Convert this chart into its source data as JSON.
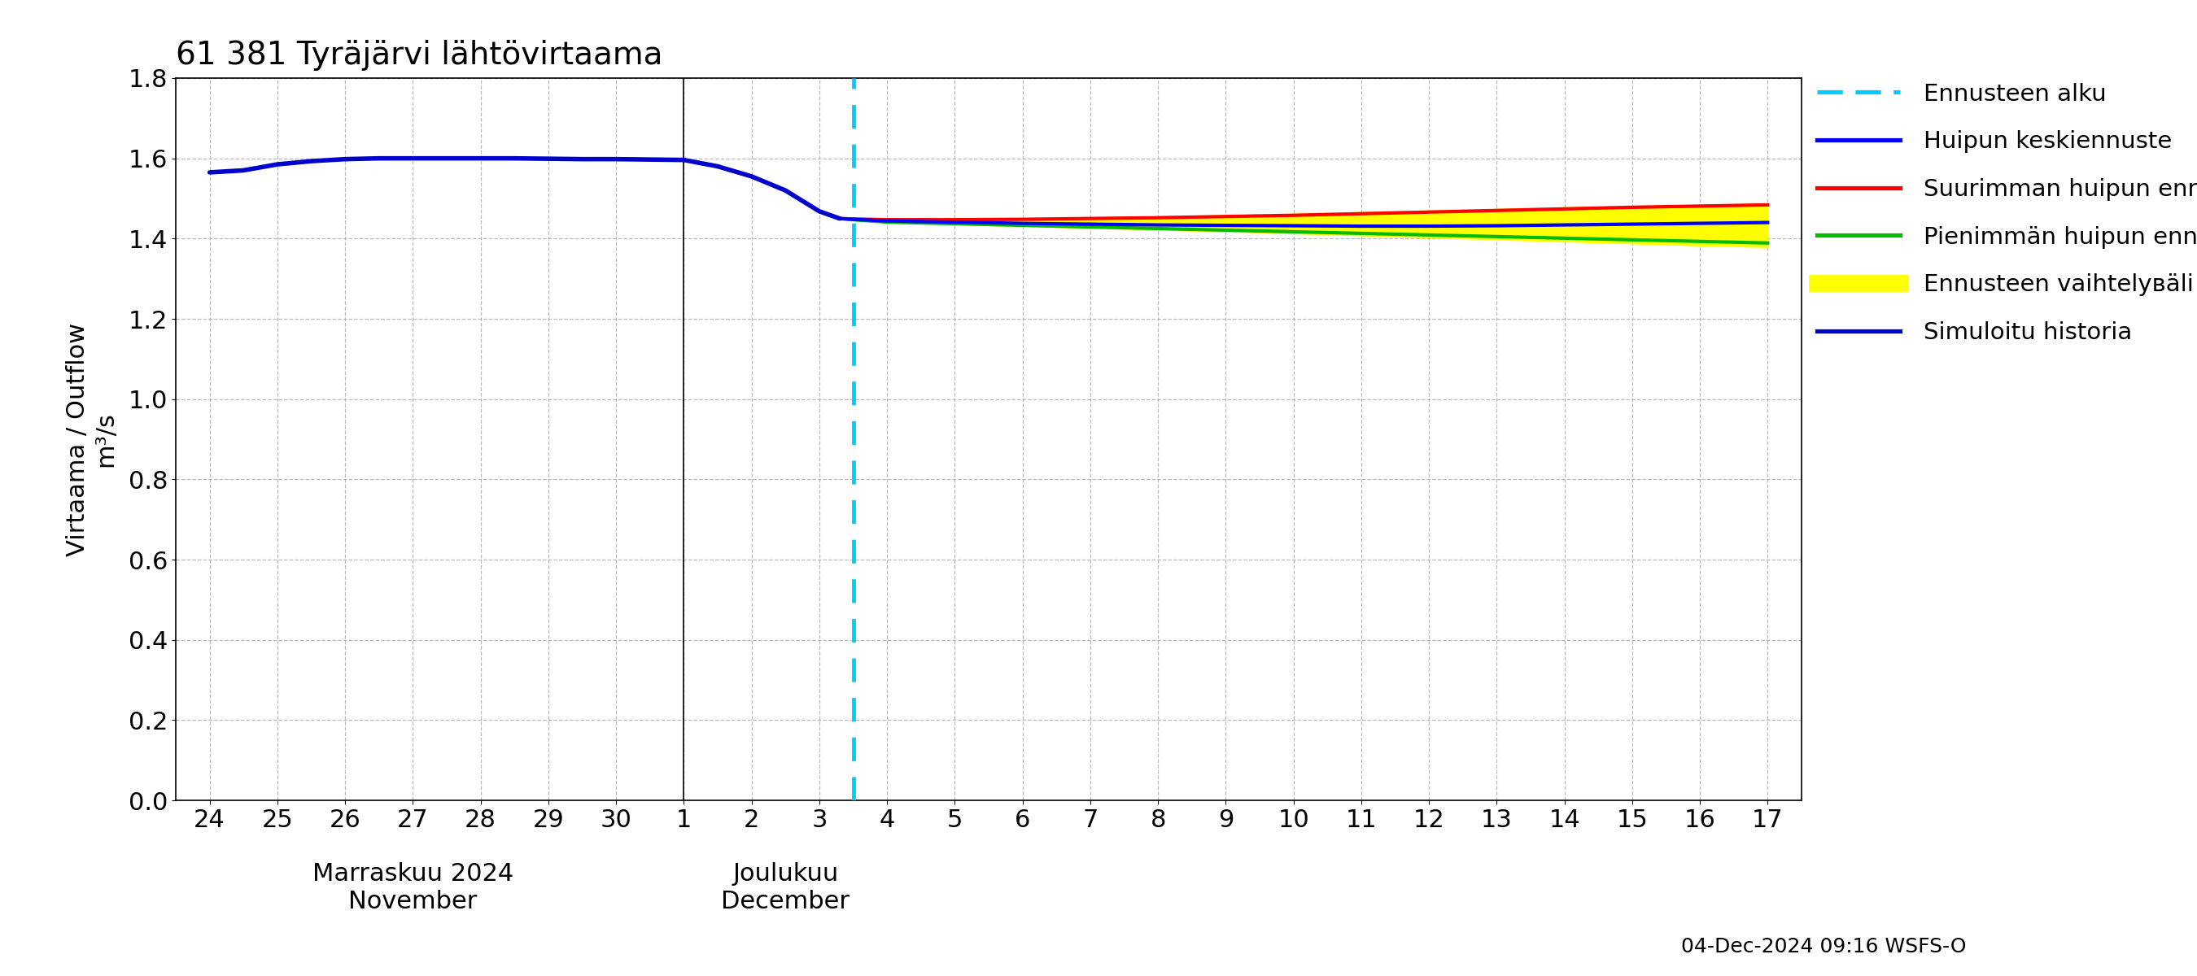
{
  "title": "61 381 Tyräjärvi lähtövirtaama",
  "ylabel_line1": "Virtaama / Outflow",
  "ylabel_line2": "m³/s",
  "timestamp": "04-Dec-2024 09:16 WSFS-O",
  "ylim": [
    0.0,
    1.8
  ],
  "yticks": [
    0.0,
    0.2,
    0.4,
    0.6,
    0.8,
    1.0,
    1.2,
    1.4,
    1.6,
    1.8
  ],
  "colors": {
    "history": "#0000cc",
    "mean_forecast": "#0000ff",
    "max_forecast": "#ff0000",
    "min_forecast": "#00bb00",
    "range_fill": "#ffff00",
    "vline": "#00ccff",
    "background": "#ffffff",
    "grid": "#aaaaaa"
  },
  "legend": [
    {
      "label": "Ennusteen alku",
      "color": "#00ccff",
      "linestyle": "dashed",
      "linewidth": 2.5
    },
    {
      "label": "Huipun keskiennuste",
      "color": "#0000ff",
      "linestyle": "solid",
      "linewidth": 2.5
    },
    {
      "label": "Suurimman huipun ennuste",
      "color": "#ff0000",
      "linestyle": "solid",
      "linewidth": 2.5
    },
    {
      "label": "Pienimmän huipun ennuste",
      "color": "#00bb00",
      "linestyle": "solid",
      "linewidth": 2.5
    },
    {
      "label": "Ennusteen vaihtelувäli",
      "color": "#ffff00",
      "linestyle": "solid",
      "linewidth": 10
    },
    {
      "label": "Simuloitu historia",
      "color": "#0000cc",
      "linestyle": "solid",
      "linewidth": 2.5
    }
  ],
  "nov_days": [
    24,
    25,
    26,
    27,
    28,
    29,
    30
  ],
  "dec_days": [
    1,
    2,
    3,
    4,
    5,
    6,
    7,
    8,
    9,
    10,
    11,
    12,
    13,
    14,
    15,
    16,
    17
  ],
  "history_x": [
    0,
    0.5,
    1,
    1.5,
    2,
    2.5,
    3,
    3.5,
    4,
    4.5,
    5,
    5.5,
    6,
    6.5,
    7,
    7.5,
    8,
    8.5,
    9,
    9.3
  ],
  "history_y": [
    1.565,
    1.57,
    1.585,
    1.593,
    1.598,
    1.6,
    1.6,
    1.6,
    1.6,
    1.6,
    1.599,
    1.598,
    1.598,
    1.597,
    1.596,
    1.58,
    1.555,
    1.52,
    1.468,
    1.45
  ],
  "forecast_x": [
    9.3,
    9.5,
    10,
    11,
    12,
    13,
    14,
    15,
    16,
    17,
    18,
    19,
    20,
    21,
    22,
    23
  ],
  "mean_y": [
    1.45,
    1.448,
    1.444,
    1.441,
    1.438,
    1.436,
    1.434,
    1.433,
    1.432,
    1.431,
    1.431,
    1.432,
    1.434,
    1.436,
    1.438,
    1.44
  ],
  "max_y": [
    1.45,
    1.449,
    1.447,
    1.447,
    1.448,
    1.45,
    1.452,
    1.455,
    1.458,
    1.462,
    1.466,
    1.47,
    1.474,
    1.478,
    1.481,
    1.484
  ],
  "min_y": [
    1.45,
    1.447,
    1.441,
    1.437,
    1.433,
    1.429,
    1.425,
    1.421,
    1.417,
    1.413,
    1.409,
    1.405,
    1.401,
    1.397,
    1.393,
    1.389
  ],
  "fill_upper": [
    1.452,
    1.451,
    1.449,
    1.449,
    1.45,
    1.452,
    1.455,
    1.458,
    1.462,
    1.466,
    1.47,
    1.474,
    1.478,
    1.481,
    1.484,
    1.487
  ],
  "fill_lower": [
    1.448,
    1.446,
    1.44,
    1.436,
    1.431,
    1.427,
    1.422,
    1.418,
    1.413,
    1.408,
    1.403,
    1.398,
    1.393,
    1.388,
    1.383,
    1.379
  ]
}
